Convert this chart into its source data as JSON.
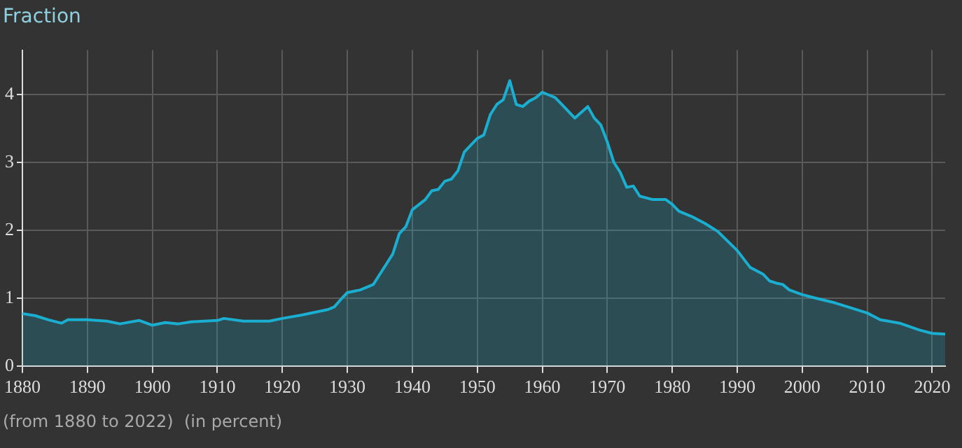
{
  "chart_data": {
    "type": "area",
    "title": "Fraction",
    "annotations": [
      "(from 1880 to 2022)  (in percent)"
    ],
    "x": [
      1880,
      1882,
      1884,
      1886,
      1887,
      1890,
      1893,
      1895,
      1898,
      1900,
      1902,
      1904,
      1906,
      1910,
      1911,
      1914,
      1918,
      1920,
      1923,
      1927,
      1928,
      1929,
      1930,
      1932,
      1934,
      1936,
      1937,
      1938,
      1939,
      1940,
      1942,
      1943,
      1944,
      1945,
      1946,
      1947,
      1948,
      1949,
      1950,
      1951,
      1952,
      1953,
      1954,
      1955,
      1956,
      1957,
      1958,
      1959,
      1960,
      1962,
      1963,
      1965,
      1967,
      1968,
      1969,
      1970,
      1971,
      1972,
      1973,
      1974,
      1975,
      1977,
      1979,
      1980,
      1981,
      1983,
      1985,
      1987,
      1990,
      1992,
      1994,
      1995,
      1996,
      1997,
      1998,
      2000,
      2002,
      2005,
      2007,
      2010,
      2012,
      2015,
      2018,
      2020,
      2022
    ],
    "series": [
      {
        "color": "#1aaed0",
        "values": [
          0.77,
          0.74,
          0.68,
          0.63,
          0.68,
          0.68,
          0.66,
          0.62,
          0.67,
          0.6,
          0.64,
          0.62,
          0.65,
          0.67,
          0.7,
          0.66,
          0.66,
          0.7,
          0.75,
          0.83,
          0.87,
          0.98,
          1.08,
          1.12,
          1.2,
          1.5,
          1.65,
          1.95,
          2.05,
          2.3,
          2.45,
          2.58,
          2.6,
          2.72,
          2.75,
          2.87,
          3.15,
          3.25,
          3.35,
          3.4,
          3.7,
          3.85,
          3.92,
          4.2,
          3.85,
          3.82,
          3.9,
          3.95,
          4.03,
          3.95,
          3.85,
          3.65,
          3.82,
          3.65,
          3.55,
          3.3,
          3.0,
          2.85,
          2.63,
          2.65,
          2.5,
          2.45,
          2.45,
          2.38,
          2.28,
          2.2,
          2.1,
          1.98,
          1.7,
          1.45,
          1.35,
          1.25,
          1.22,
          1.2,
          1.12,
          1.05,
          1.0,
          0.93,
          0.87,
          0.78,
          0.68,
          0.63,
          0.53,
          0.48,
          0.47
        ]
      }
    ],
    "xlim": [
      1880,
      2022
    ],
    "xticks": [
      1880,
      1890,
      1900,
      1910,
      1920,
      1930,
      1940,
      1950,
      1960,
      1970,
      1980,
      1990,
      2000,
      2010,
      2020
    ],
    "ylim": [
      0,
      4.65
    ],
    "yticks": [
      0,
      1,
      2,
      3,
      4
    ],
    "grid": true,
    "legend": false
  }
}
